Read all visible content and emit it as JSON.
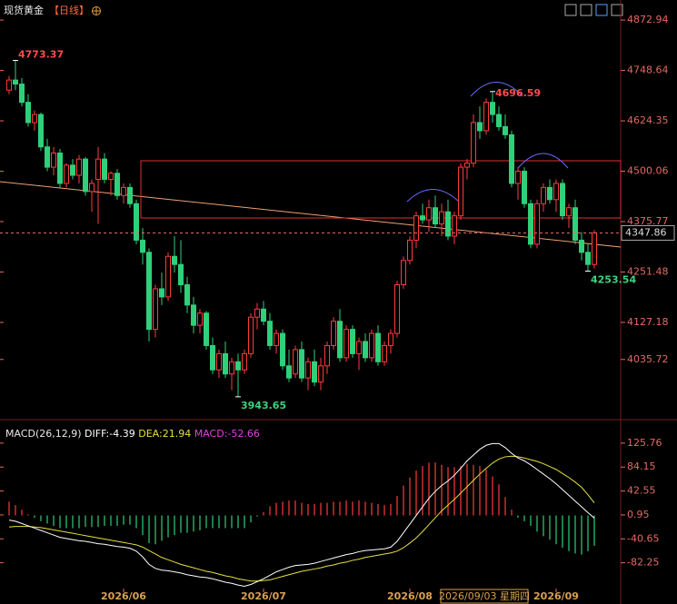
{
  "chart_data": [
    {
      "type": "candlestick",
      "title": "现货黄金",
      "period": "【日线】",
      "categories": [
        null,
        null,
        null,
        null,
        null,
        null,
        null,
        null,
        null,
        null,
        null,
        null,
        null,
        null,
        null,
        null,
        null,
        null,
        "2026/06",
        null,
        null,
        null,
        null,
        null,
        null,
        null,
        null,
        null,
        null,
        null,
        null,
        null,
        null,
        null,
        null,
        null,
        null,
        null,
        null,
        null,
        "2026/07",
        null,
        null,
        null,
        null,
        null,
        null,
        null,
        null,
        null,
        null,
        null,
        null,
        null,
        null,
        null,
        null,
        null,
        null,
        null,
        null,
        null,
        null,
        "2026/08",
        null,
        null,
        null,
        null,
        null,
        null,
        null,
        null,
        null,
        null,
        null,
        null,
        null,
        null,
        null,
        null,
        null,
        null,
        null,
        null,
        null,
        null,
        "2026/09",
        null,
        null,
        null,
        null,
        null,
        null
      ],
      "ohlc": [
        [
          4700,
          4735,
          4690,
          4725
        ],
        [
          4725,
          4773.37,
          4700,
          4715
        ],
        [
          4715,
          4730,
          4660,
          4670
        ],
        [
          4670,
          4690,
          4610,
          4620
        ],
        [
          4620,
          4650,
          4600,
          4640
        ],
        [
          4640,
          4645,
          4550,
          4560
        ],
        [
          4560,
          4580,
          4500,
          4510
        ],
        [
          4510,
          4560,
          4490,
          4545
        ],
        [
          4545,
          4555,
          4460,
          4470
        ],
        [
          4470,
          4520,
          4460,
          4515
        ],
        [
          4515,
          4530,
          4480,
          4490
        ],
        [
          4490,
          4540,
          4470,
          4530
        ],
        [
          4530,
          4535,
          4440,
          4450
        ],
        [
          4450,
          4480,
          4400,
          4470
        ],
        [
          4480,
          4560,
          4370,
          4530
        ],
        [
          4530,
          4545,
          4470,
          4480
        ],
        [
          4480,
          4500,
          4440,
          4495
        ],
        [
          4495,
          4505,
          4430,
          4440
        ],
        [
          4440,
          4470,
          4420,
          4460
        ],
        [
          4460,
          4470,
          4410,
          4420
        ],
        [
          4420,
          4430,
          4320,
          4330
        ],
        [
          4330,
          4360,
          4270,
          4300
        ],
        [
          4300,
          4310,
          4080,
          4110
        ],
        [
          4110,
          4220,
          4090,
          4210
        ],
        [
          4210,
          4250,
          4170,
          4190
        ],
        [
          4190,
          4300,
          4180,
          4290
        ],
        [
          4290,
          4340,
          4250,
          4270
        ],
        [
          4270,
          4330,
          4200,
          4220
        ],
        [
          4220,
          4240,
          4150,
          4170
        ],
        [
          4170,
          4190,
          4100,
          4120
        ],
        [
          4120,
          4160,
          4100,
          4150
        ],
        [
          4150,
          4155,
          4060,
          4070
        ],
        [
          4070,
          4090,
          4000,
          4010
        ],
        [
          4010,
          4060,
          3990,
          4050
        ],
        [
          4050,
          4080,
          3990,
          4000
        ],
        [
          4000,
          4040,
          3960,
          4030
        ],
        [
          4030,
          4050,
          3943.65,
          4010
        ],
        [
          4010,
          4060,
          4000,
          4050
        ],
        [
          4050,
          4150,
          4040,
          4140
        ],
        [
          4140,
          4175,
          4110,
          4160
        ],
        [
          4160,
          4180,
          4120,
          4130
        ],
        [
          4130,
          4150,
          4060,
          4070
        ],
        [
          4070,
          4110,
          4050,
          4100
        ],
        [
          4100,
          4110,
          4010,
          4020
        ],
        [
          4020,
          4060,
          3980,
          3990
        ],
        [
          4000,
          4070,
          3990,
          4060
        ],
        [
          4060,
          4080,
          3980,
          3990
        ],
        [
          3990,
          4040,
          3960,
          4030
        ],
        [
          4030,
          4060,
          3970,
          3980
        ],
        [
          3980,
          4040,
          3960,
          4020
        ],
        [
          4020,
          4080,
          4000,
          4070
        ],
        [
          4070,
          4140,
          4060,
          4130
        ],
        [
          4130,
          4160,
          4030,
          4040
        ],
        [
          4040,
          4120,
          4030,
          4110
        ],
        [
          4110,
          4120,
          4040,
          4050
        ],
        [
          4050,
          4090,
          4010,
          4080
        ],
        [
          4080,
          4100,
          4030,
          4040
        ],
        [
          4040,
          4110,
          4030,
          4100
        ],
        [
          4100,
          4120,
          4020,
          4030
        ],
        [
          4030,
          4080,
          4020,
          4070
        ],
        [
          4070,
          4110,
          4050,
          4100
        ],
        [
          4100,
          4230,
          4090,
          4220
        ],
        [
          4220,
          4290,
          4210,
          4280
        ],
        [
          4280,
          4340,
          4270,
          4330
        ],
        [
          4330,
          4400,
          4310,
          4390
        ],
        [
          4390,
          4420,
          4370,
          4380
        ],
        [
          4380,
          4430,
          4350,
          4410
        ],
        [
          4410,
          4440,
          4360,
          4370
        ],
        [
          4370,
          4420,
          4340,
          4400
        ],
        [
          4400,
          4430,
          4330,
          4340
        ],
        [
          4340,
          4400,
          4320,
          4390
        ],
        [
          4390,
          4520,
          4380,
          4510
        ],
        [
          4510,
          4530,
          4480,
          4520
        ],
        [
          4520,
          4640,
          4510,
          4620
        ],
        [
          4620,
          4660,
          4580,
          4600
        ],
        [
          4600,
          4680,
          4590,
          4670
        ],
        [
          4670,
          4696.59,
          4620,
          4640
        ],
        [
          4640,
          4660,
          4600,
          4610
        ],
        [
          4610,
          4640,
          4580,
          4590
        ],
        [
          4590,
          4600,
          4460,
          4470
        ],
        [
          4470,
          4510,
          4430,
          4500
        ],
        [
          4500,
          4510,
          4410,
          4420
        ],
        [
          4420,
          4430,
          4310,
          4320
        ],
        [
          4320,
          4430,
          4310,
          4420
        ],
        [
          4420,
          4470,
          4400,
          4460
        ],
        [
          4460,
          4480,
          4420,
          4430
        ],
        [
          4430,
          4480,
          4400,
          4470
        ],
        [
          4470,
          4480,
          4380,
          4390
        ],
        [
          4390,
          4420,
          4360,
          4410
        ],
        [
          4410,
          4430,
          4320,
          4330
        ],
        [
          4330,
          4350,
          4280,
          4300
        ],
        [
          4300,
          4320,
          4253.54,
          4270
        ],
        [
          4270,
          4355,
          4260,
          4347.86
        ]
      ],
      "ylim": [
        3903,
        4900
      ],
      "yticks": [
        4872.94,
        4748.64,
        4624.35,
        4500.06,
        4375.77,
        4251.48,
        4127.18,
        4035.72
      ],
      "up_color": "#ff3b3b",
      "down_color": "#2fd07a",
      "crosshair_label": "2026/09/03 星期四"
    },
    {
      "type": "macd",
      "title": "MACD(26,12,9)",
      "diff_label": "DIFF:",
      "dea_label": "DEA:",
      "macd_label": "MACD:",
      "diff": [
        -8,
        -10,
        -14,
        -18,
        -22,
        -26,
        -30,
        -34,
        -38,
        -40,
        -42,
        -44,
        -45,
        -47,
        -49,
        -50,
        -52,
        -54,
        -55,
        -57,
        -62,
        -72,
        -85,
        -92,
        -95,
        -96,
        -98,
        -100,
        -103,
        -105,
        -107,
        -108,
        -110,
        -113,
        -116,
        -118,
        -121,
        -123,
        -120,
        -115,
        -110,
        -104,
        -98,
        -94,
        -90,
        -87,
        -86,
        -85,
        -83,
        -80,
        -77,
        -74,
        -71,
        -68,
        -66,
        -63,
        -61,
        -60,
        -59,
        -58,
        -55,
        -45,
        -30,
        -15,
        0,
        15,
        30,
        42,
        52,
        60,
        70,
        82,
        95,
        105,
        115,
        122,
        125,
        125,
        118,
        108,
        100,
        95,
        88,
        80,
        72,
        64,
        55,
        45,
        35,
        25,
        15,
        5,
        -4.39
      ],
      "dea": [
        -20,
        -19,
        -19,
        -19,
        -20,
        -21,
        -23,
        -25,
        -27,
        -29,
        -31,
        -33,
        -35,
        -37,
        -39,
        -41,
        -43,
        -45,
        -47,
        -49,
        -51,
        -55,
        -61,
        -67,
        -73,
        -77,
        -81,
        -85,
        -88,
        -91,
        -94,
        -97,
        -99,
        -102,
        -105,
        -107,
        -110,
        -112,
        -114,
        -114,
        -113,
        -112,
        -109,
        -106,
        -103,
        -100,
        -97,
        -95,
        -93,
        -91,
        -88,
        -86,
        -83,
        -81,
        -78,
        -76,
        -73,
        -71,
        -69,
        -67,
        -65,
        -62,
        -56,
        -48,
        -39,
        -28,
        -16,
        -4,
        8,
        18,
        28,
        39,
        50,
        61,
        72,
        82,
        91,
        98,
        102,
        103,
        102,
        100,
        97,
        94,
        90,
        85,
        80,
        73,
        66,
        58,
        49,
        36,
        21.94
      ],
      "hist": [
        24,
        18,
        10,
        2,
        -4,
        -10,
        -14,
        -18,
        -22,
        -22,
        -22,
        -22,
        -20,
        -20,
        -20,
        -18,
        -18,
        -18,
        -16,
        -16,
        -22,
        -34,
        -48,
        -50,
        -44,
        -38,
        -34,
        -30,
        -30,
        -28,
        -26,
        -22,
        -22,
        -22,
        -22,
        -22,
        -22,
        -22,
        -12,
        -2,
        6,
        16,
        22,
        24,
        26,
        26,
        22,
        20,
        20,
        22,
        22,
        24,
        24,
        26,
        24,
        26,
        24,
        22,
        20,
        18,
        20,
        34,
        52,
        66,
        78,
        86,
        92,
        92,
        88,
        84,
        84,
        86,
        90,
        88,
        86,
        80,
        68,
        54,
        32,
        10,
        -4,
        -10,
        -18,
        -28,
        -36,
        -42,
        -50,
        -56,
        -62,
        -66,
        -68,
        -62,
        -52.66
      ],
      "ylim": [
        -146,
        154
      ],
      "yticks": [
        125.76,
        84.15,
        42.55,
        0.95,
        -40.65,
        -82.25
      ],
      "diff_color": "#ffffff",
      "dea_color": "#e8e040",
      "macd_color": "#e040e0"
    }
  ]
}
